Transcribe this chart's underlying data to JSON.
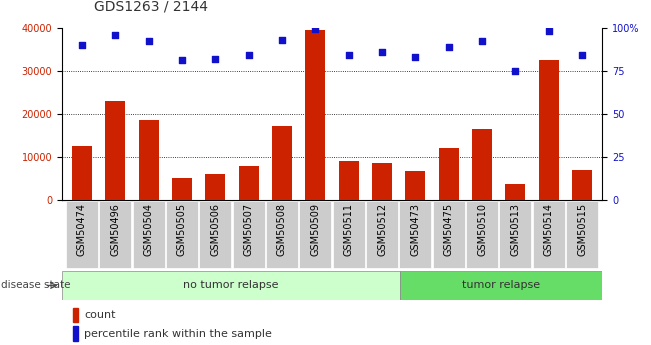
{
  "title": "GDS1263 / 2144",
  "categories": [
    "GSM50474",
    "GSM50496",
    "GSM50504",
    "GSM50505",
    "GSM50506",
    "GSM50507",
    "GSM50508",
    "GSM50509",
    "GSM50511",
    "GSM50512",
    "GSM50473",
    "GSM50475",
    "GSM50510",
    "GSM50513",
    "GSM50514",
    "GSM50515"
  ],
  "counts": [
    12500,
    23000,
    18500,
    5200,
    6000,
    7800,
    17200,
    39500,
    9000,
    8500,
    6800,
    12000,
    16500,
    3800,
    32500,
    7000
  ],
  "percentiles": [
    90,
    96,
    92,
    81,
    82,
    84,
    93,
    99,
    84,
    86,
    83,
    89,
    92,
    75,
    98,
    84
  ],
  "bar_color": "#cc2200",
  "dot_color": "#1111cc",
  "no_tumor_count": 10,
  "tumor_count": 6,
  "no_tumor_label": "no tumor relapse",
  "tumor_label": "tumor relapse",
  "disease_state_label": "disease state",
  "legend_count": "count",
  "legend_percentile": "percentile rank within the sample",
  "ylim_left": [
    0,
    40000
  ],
  "ylim_right": [
    0,
    100
  ],
  "yticks_left": [
    0,
    10000,
    20000,
    30000,
    40000
  ],
  "yticks_right": [
    0,
    25,
    50,
    75,
    100
  ],
  "ytick_labels_right": [
    "0",
    "25",
    "50",
    "75",
    "100%"
  ],
  "grid_color": "#000000",
  "bg_color_notumor": "#ccffcc",
  "bg_color_tumor": "#66dd66",
  "tick_bg_color": "#cccccc",
  "title_fontsize": 10,
  "tick_fontsize": 7,
  "axis_bg": "#ffffff"
}
